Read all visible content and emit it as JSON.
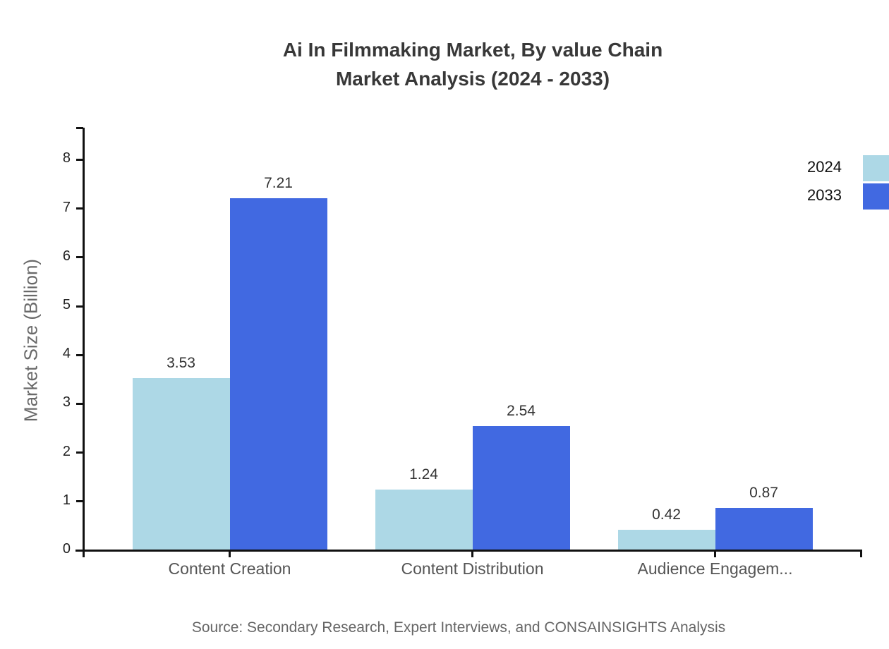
{
  "page": {
    "title_line1": "Ai In Filmmaking Market, By value Chain",
    "title_line2": "Market Analysis (2024 - 2033)",
    "source": "Source: Secondary Research, Expert Interviews, and CONSAINSIGHTS Analysis"
  },
  "chart_data": {
    "type": "bar",
    "title": "Ai In Filmmaking Market, By value Chain Market Analysis (2024 - 2033)",
    "categories": [
      "Content Creation",
      "Content Distribution",
      "Audience Engagem..."
    ],
    "series": [
      {
        "name": "2024",
        "color": "#ADD8E6",
        "values": [
          3.53,
          1.24,
          0.42
        ]
      },
      {
        "name": "2033",
        "color": "#4169E1",
        "values": [
          7.21,
          2.54,
          0.87
        ]
      }
    ],
    "xlabel": "",
    "ylabel": "Market Size (Billion)",
    "ylim": [
      0,
      8.65
    ],
    "yticks": [
      0,
      1,
      2,
      3,
      4,
      5,
      6,
      7,
      8
    ],
    "grid": false,
    "legend_position": "top-right",
    "value_labels": true,
    "axis_color": "#111111",
    "source": "Source: Secondary Research, Expert Interviews, and CONSAINSIGHTS Analysis"
  }
}
